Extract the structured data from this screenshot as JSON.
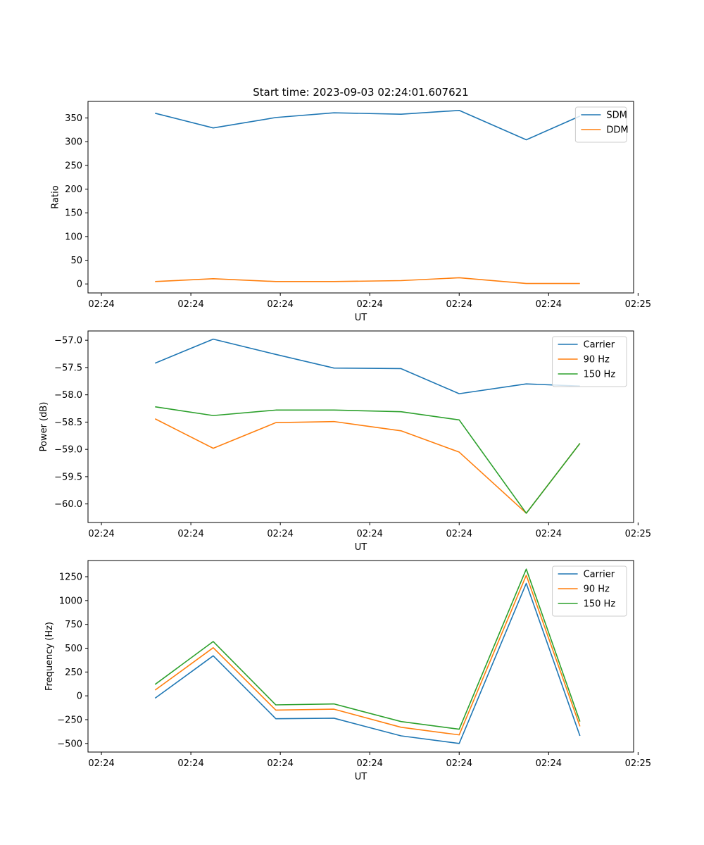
{
  "chart_data": [
    {
      "type": "line",
      "title": "Start time: 2023-09-03 02:24:01.607621",
      "xlabel": "UT",
      "ylabel": "Ratio",
      "x": [
        0.75,
        1.4,
        2.1,
        2.75,
        3.5,
        4.15,
        4.9,
        5.5
      ],
      "xlim": [
        0,
        6.1
      ],
      "xticks": [
        0.15,
        1.15,
        2.15,
        3.15,
        4.15,
        5.15,
        6.15
      ],
      "xtick_labels": [
        "02:24",
        "02:24",
        "02:24",
        "02:24",
        "02:24",
        "02:24",
        "02:25"
      ],
      "ylim": [
        -19,
        385
      ],
      "yticks": [
        0,
        50,
        100,
        150,
        200,
        250,
        300,
        350
      ],
      "ytick_labels": [
        "0",
        "50",
        "100",
        "150",
        "200",
        "250",
        "300",
        "350"
      ],
      "legend_position": "top-right",
      "series": [
        {
          "name": "SDM",
          "color": "#1f77b4",
          "values": [
            360,
            329,
            351,
            361,
            358,
            366,
            304,
            354
          ]
        },
        {
          "name": "DDM",
          "color": "#ff7f0e",
          "values": [
            5,
            11,
            5,
            5,
            7,
            13,
            1,
            1
          ]
        }
      ]
    },
    {
      "type": "line",
      "title": "",
      "xlabel": "UT",
      "ylabel": "Power (dB)",
      "x": [
        0.75,
        1.4,
        2.1,
        2.75,
        3.5,
        4.15,
        4.9,
        5.5
      ],
      "xlim": [
        0,
        6.1
      ],
      "xticks": [
        0.15,
        1.15,
        2.15,
        3.15,
        4.15,
        5.15,
        6.15
      ],
      "xtick_labels": [
        "02:24",
        "02:24",
        "02:24",
        "02:24",
        "02:24",
        "02:24",
        "02:25"
      ],
      "ylim": [
        -60.34,
        -56.83
      ],
      "yticks": [
        -60.0,
        -59.5,
        -59.0,
        -58.5,
        -58.0,
        -57.5,
        -57.0
      ],
      "ytick_labels": [
        "−60.0",
        "−59.5",
        "−59.0",
        "−58.5",
        "−58.0",
        "−57.5",
        "−57.0"
      ],
      "legend_position": "top-right",
      "series": [
        {
          "name": "Carrier",
          "color": "#1f77b4",
          "values": [
            -57.42,
            -56.98,
            -57.26,
            -57.51,
            -57.52,
            -57.98,
            -57.8,
            -57.84
          ]
        },
        {
          "name": "90 Hz",
          "color": "#ff7f0e",
          "values": [
            -58.44,
            -58.98,
            -58.51,
            -58.49,
            -58.66,
            -59.05,
            -60.17,
            -58.89
          ]
        },
        {
          "name": "150 Hz",
          "color": "#2ca02c",
          "values": [
            -58.22,
            -58.38,
            -58.28,
            -58.28,
            -58.31,
            -58.46,
            -60.17,
            -58.89
          ]
        }
      ]
    },
    {
      "type": "line",
      "title": "",
      "xlabel": "UT",
      "ylabel": "Frequency (Hz)",
      "x": [
        0.75,
        1.4,
        2.1,
        2.75,
        3.5,
        4.15,
        4.9,
        5.5
      ],
      "xlim": [
        0,
        6.1
      ],
      "xticks": [
        0.15,
        1.15,
        2.15,
        3.15,
        4.15,
        5.15,
        6.15
      ],
      "xtick_labels": [
        "02:24",
        "02:24",
        "02:24",
        "02:24",
        "02:24",
        "02:24",
        "02:25"
      ],
      "ylim": [
        -590,
        1420
      ],
      "yticks": [
        -500,
        -250,
        0,
        250,
        500,
        750,
        1000,
        1250
      ],
      "ytick_labels": [
        "−500",
        "−250",
        "0",
        "250",
        "500",
        "750",
        "1000",
        "1250"
      ],
      "legend_position": "top-right",
      "series": [
        {
          "name": "Carrier",
          "color": "#1f77b4",
          "values": [
            -25,
            420,
            -240,
            -235,
            -420,
            -500,
            1180,
            -420
          ]
        },
        {
          "name": "90 Hz",
          "color": "#ff7f0e",
          "values": [
            60,
            505,
            -150,
            -140,
            -330,
            -410,
            1265,
            -320
          ]
        },
        {
          "name": "150 Hz",
          "color": "#2ca02c",
          "values": [
            120,
            570,
            -95,
            -85,
            -270,
            -350,
            1330,
            -270
          ]
        }
      ]
    }
  ]
}
